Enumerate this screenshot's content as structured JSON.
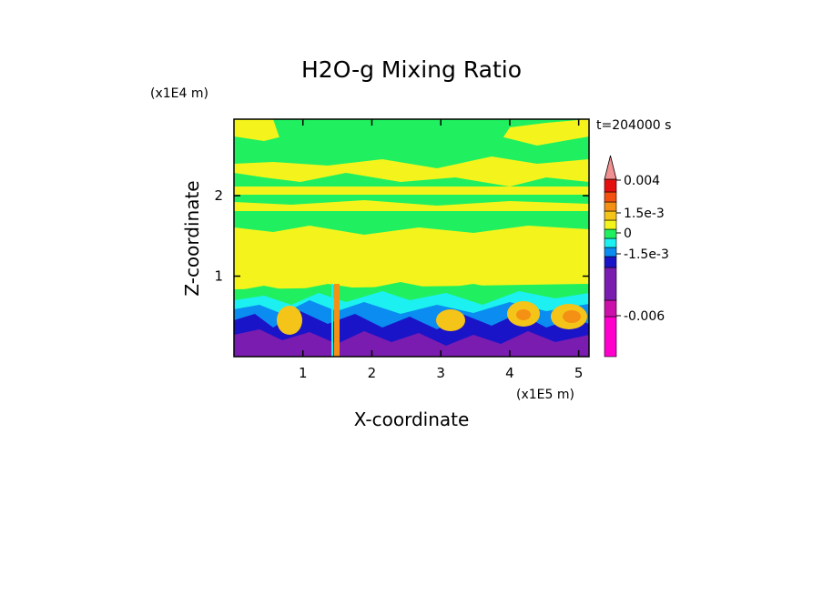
{
  "chart_data": {
    "type": "heatmap",
    "title": "H2O-g Mixing Ratio",
    "xlabel": "X-coordinate",
    "ylabel": "Z-coordinate",
    "x_scale_label": "(x1E5 m)",
    "y_scale_label": "(x1E4 m)",
    "time_label": "t=204000 s",
    "xlim": [
      0,
      5.15
    ],
    "ylim": [
      0,
      2.95
    ],
    "x_ticks": [
      1,
      2,
      3,
      4,
      5
    ],
    "x_tick_labels": [
      "1",
      "2",
      "3",
      "4",
      "5"
    ],
    "y_ticks": [
      1,
      2
    ],
    "y_tick_labels": [
      "1",
      "2"
    ],
    "grid": false,
    "colorbar": {
      "extend": "max",
      "bins": [
        {
          "color": "#ff00cc"
        },
        {
          "color": "#cc11aa"
        },
        {
          "color": "#7a1cb0"
        },
        {
          "color": "#1a14c8"
        },
        {
          "color": "#0a8cf0"
        },
        {
          "color": "#1cf0f0"
        },
        {
          "color": "#20f060"
        },
        {
          "color": "#f4f41c"
        },
        {
          "color": "#f4c418"
        },
        {
          "color": "#f49014"
        },
        {
          "color": "#f45010"
        },
        {
          "color": "#e41010"
        },
        {
          "color": "#f09090"
        }
      ],
      "tick_labels": [
        {
          "label": "-0.006",
          "value": -0.006
        },
        {
          "label": "-1.5e-3",
          "value": -0.0015
        },
        {
          "label": "0",
          "value": 0
        },
        {
          "label": "1.5e-3",
          "value": 0.0015
        },
        {
          "label": "0.004",
          "value": 0.004
        }
      ]
    }
  }
}
